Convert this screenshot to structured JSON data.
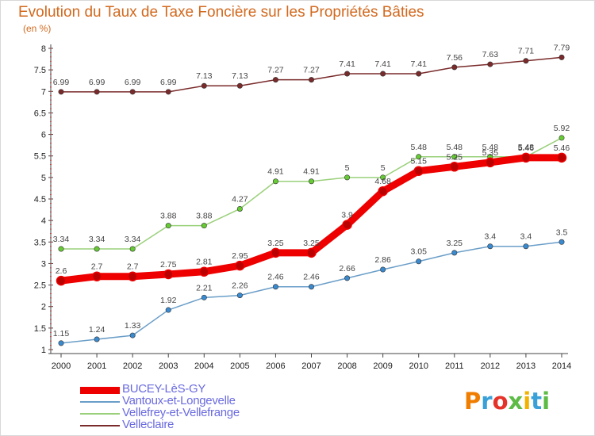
{
  "header": {
    "title": "Evolution du Taux de Taxe Foncière sur les Propriétés Bâties",
    "unit": "(en %)"
  },
  "logo": {
    "text": "Proxiti",
    "colors": [
      "#ef7d00",
      "#3aa0d8",
      "#e5332a",
      "#5dbb46",
      "#f2b300",
      "#3aa0d8",
      "#5dbb46"
    ]
  },
  "chart_data": {
    "type": "line",
    "x": [
      "2000",
      "2001",
      "2002",
      "2003",
      "2004",
      "2005",
      "2006",
      "2007",
      "2008",
      "2009",
      "2010",
      "2011",
      "2012",
      "2013",
      "2014"
    ],
    "ylim": [
      1,
      8
    ],
    "yticks": [
      "1",
      "1.5",
      "2",
      "2.5",
      "3",
      "3.5",
      "4",
      "4.5",
      "5",
      "5.5",
      "6",
      "6.5",
      "7",
      "7.5",
      "8"
    ],
    "grid": false,
    "legend_position": "bottom-left",
    "series": [
      {
        "name": "Velleclaire",
        "color": "#7a2a2a",
        "marker_color": "#7a2a2a",
        "values": [
          6.99,
          6.99,
          6.99,
          6.99,
          7.13,
          7.13,
          7.27,
          7.27,
          7.41,
          7.41,
          7.41,
          7.56,
          7.63,
          7.71,
          7.79
        ],
        "labels": [
          "6.99",
          "6.99",
          "6.99",
          "6.99",
          "7.13",
          "7.13",
          "7.27",
          "7.27",
          "7.41",
          "7.41",
          "7.41",
          "7.56",
          "7.63",
          "7.71",
          "7.79"
        ]
      },
      {
        "name": "Vellefrey-et-Vellefrange",
        "color": "#9ad07a",
        "marker_color": "#66cc33",
        "values": [
          3.34,
          3.34,
          3.34,
          3.88,
          3.88,
          4.27,
          4.91,
          4.91,
          5,
          5,
          5.48,
          5.48,
          5.48,
          5.48,
          5.92
        ],
        "labels": [
          "3.34",
          "3.34",
          "3.34",
          "3.88",
          "3.88",
          "4.27",
          "4.91",
          "4.91",
          "5",
          "5",
          "5.48",
          "5.48",
          "5.48",
          "5.48",
          "5.92"
        ]
      },
      {
        "name": "Vantoux-et-Longevelle",
        "color": "#6a9ec8",
        "marker_color": "#3a8ad0",
        "values": [
          1.15,
          1.24,
          1.33,
          1.92,
          2.21,
          2.26,
          2.46,
          2.46,
          2.66,
          2.86,
          3.05,
          3.25,
          3.4,
          3.4,
          3.5
        ],
        "labels": [
          "1.15",
          "1.24",
          "1.33",
          "1.92",
          "2.21",
          "2.26",
          "2.46",
          "2.46",
          "2.66",
          "2.86",
          "3.05",
          "3.25",
          "3.4",
          "3.4",
          "3.5"
        ]
      },
      {
        "name": "BUCEY-LèS-GY",
        "color": "#ee0000",
        "marker_color": "#bb0000",
        "values": [
          2.6,
          2.7,
          2.7,
          2.75,
          2.81,
          2.95,
          3.25,
          3.25,
          3.9,
          4.68,
          5.15,
          5.25,
          5.35,
          5.46,
          5.46
        ],
        "labels": [
          "2.6",
          "2.7",
          "2.7",
          "2.75",
          "2.81",
          "2.95",
          "3.25",
          "3.25",
          "3.9",
          "4.68",
          "5.15",
          "5.25",
          "5.35",
          "5.46",
          "5.46"
        ]
      }
    ]
  },
  "legend": [
    {
      "name": "BUCEY-LèS-GY",
      "color": "#ee0000"
    },
    {
      "name": "Vantoux-et-Longevelle",
      "color": "#6a9ec8"
    },
    {
      "name": "Vellefrey-et-Vellefrange",
      "color": "#9ad07a"
    },
    {
      "name": "Velleclaire",
      "color": "#7a2a2a"
    }
  ]
}
